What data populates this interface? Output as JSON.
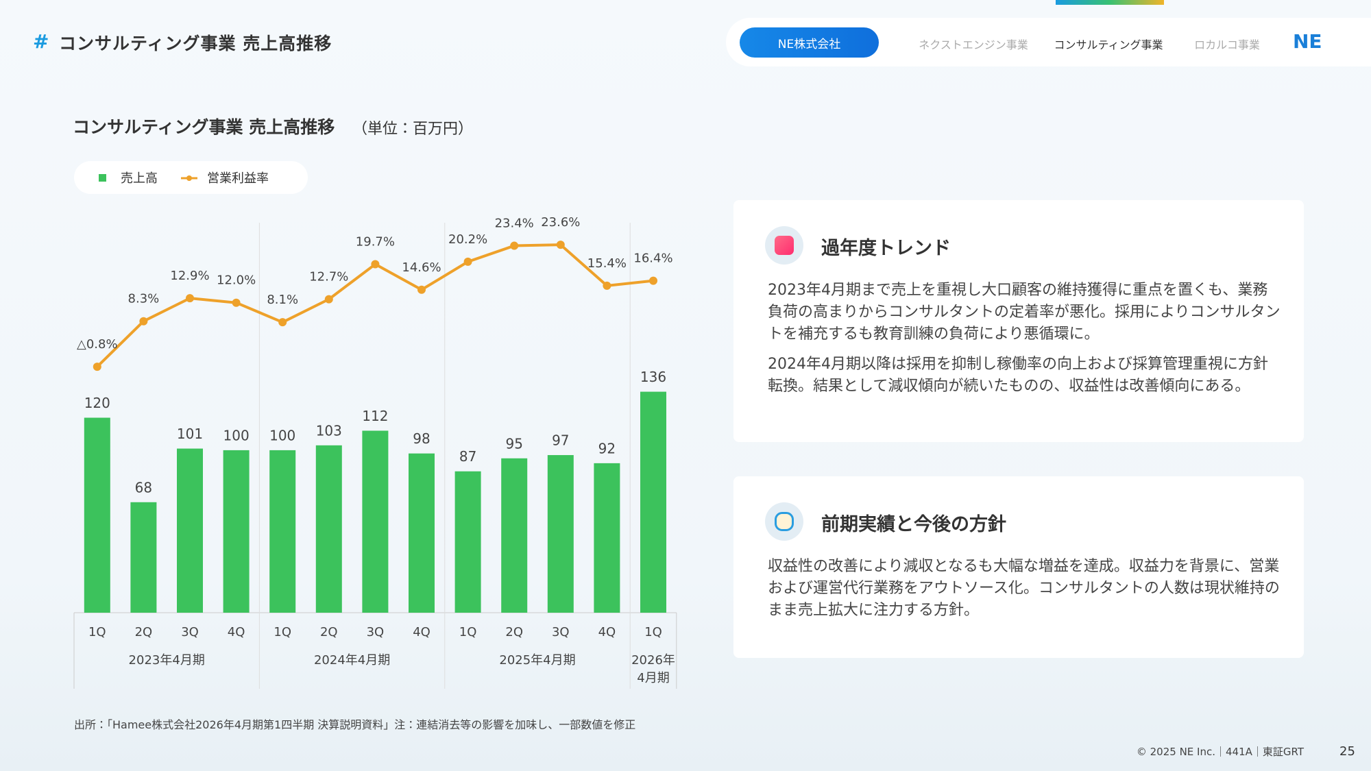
{
  "header": {
    "mark": "#",
    "title": "コンサルティング事業 売上高推移"
  },
  "nav": {
    "active": "NE株式会社",
    "items": [
      "ネクストエンジン事業",
      "コンサルティング事業",
      "ロカルコ事業"
    ],
    "logo": "NE"
  },
  "chart_data": {
    "type": "bar_line",
    "title": "コンサルティング事業 売上高推移",
    "subtitle": "（単位：百万円）",
    "categories": [
      "1Q",
      "2Q",
      "3Q",
      "4Q",
      "1Q",
      "2Q",
      "3Q",
      "4Q",
      "1Q",
      "2Q",
      "3Q",
      "4Q",
      "1Q"
    ],
    "periods": [
      "2023年4月期",
      "2023年4月期",
      "2023年4月期",
      "2023年4月期",
      "2024年4月期",
      "2024年4月期",
      "2024年4月期",
      "2024年4月期",
      "2025年4月期",
      "2025年4月期",
      "2025年4月期",
      "2025年4月期",
      "2026年\n4月期"
    ],
    "ylim": [
      0,
      240
    ],
    "y2lim": [
      -50,
      28
    ],
    "series": [
      {
        "name": "売上高",
        "type": "bar",
        "color": "#3cc25c",
        "values": [
          120,
          68,
          101,
          100,
          100,
          103,
          112,
          98,
          87,
          95,
          97,
          92,
          136
        ]
      },
      {
        "name": "営業利益率",
        "type": "line",
        "axis": "y2",
        "color": "#eea12a",
        "values": [
          -0.8,
          8.3,
          12.9,
          12.0,
          8.1,
          12.7,
          19.7,
          14.6,
          20.2,
          23.4,
          23.6,
          15.4,
          16.4
        ],
        "value_labels": [
          "△0.8%",
          "8.3%",
          "12.9%",
          "12.0%",
          "8.1%",
          "12.7%",
          "19.7%",
          "14.6%",
          "20.2%",
          "23.4%",
          "23.6%",
          "15.4%",
          "16.4%"
        ]
      }
    ]
  },
  "cards": [
    {
      "title": "過年度トレンド",
      "paragraphs": [
        "2023年4月期まで売上を重視し大口顧客の維持獲得に重点を置くも、業務負荷の高まりからコンサルタントの定着率が悪化。採用によりコンサルタントを補充するも教育訓練の負荷により悪循環に。",
        "2024年4月期以降は採用を抑制し稼働率の向上および採算管理重視に方針転換。結果として減収傾向が続いたものの、収益性は改善傾向にある。"
      ]
    },
    {
      "title": "前期実績と今後の方針",
      "paragraphs": [
        "収益性の改善により減収となるも大幅な増益を達成。収益力を背景に、営業および運営代行業務をアウトソース化。コンサルタントの人数は現状維持のまま売上拡大に注力する方針。"
      ]
    }
  ],
  "footer": {
    "source": "出所：「Hamee株式会社2026年4月期第1四半期 決算説明資料」注：連結消去等の影響を加味し、一部数値を修正",
    "copyright": "© 2025 NE Inc.｜441A｜東証GRT",
    "page": "25"
  }
}
